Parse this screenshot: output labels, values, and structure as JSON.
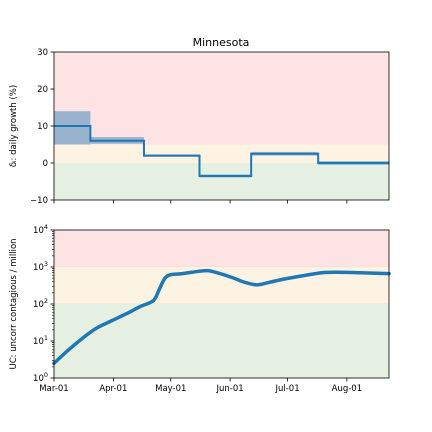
{
  "chart_data": [
    {
      "type": "step",
      "title": "Minnesota",
      "ylabel": "δᵢ: daily growth (%)",
      "ylim": [
        -10,
        30
      ],
      "xlim_days": [
        0,
        175
      ],
      "yticks": [
        -10,
        0,
        10,
        20,
        30
      ],
      "ytick_labels": [
        "−10",
        "0",
        "10",
        "20",
        "30"
      ],
      "bands": [
        {
          "name": "red-zone",
          "from": 5,
          "to": 30,
          "color": "#fde3e3"
        },
        {
          "name": "yellow-zone",
          "from": 0,
          "to": 5,
          "color": "#fdf3e3"
        },
        {
          "name": "green-zone",
          "from": -10,
          "to": 0,
          "color": "#e5f0e2"
        }
      ],
      "series": [
        {
          "name": "daily growth",
          "color": "#1f77b4",
          "segments": [
            {
              "start_day": 0,
              "end_day": 19,
              "value": 10,
              "ci_low": 5,
              "ci_high": 14
            },
            {
              "start_day": 19,
              "end_day": 47,
              "value": 6,
              "ci_low": 5.2,
              "ci_high": 7
            },
            {
              "start_day": 47,
              "end_day": 76,
              "value": 2,
              "ci_low": 1.7,
              "ci_high": 2.3
            },
            {
              "start_day": 76,
              "end_day": 103,
              "value": -3.5,
              "ci_low": -3.9,
              "ci_high": -3.1
            },
            {
              "start_day": 103,
              "end_day": 138,
              "value": 2.5,
              "ci_low": 2.0,
              "ci_high": 3.0
            },
            {
              "start_day": 138,
              "end_day": 175,
              "value": 0,
              "ci_low": -0.5,
              "ci_high": 0.5
            }
          ]
        }
      ]
    },
    {
      "type": "line",
      "ylabel": "UC: uncorr contagious / million",
      "yscale": "log",
      "ylim": [
        1,
        10000
      ],
      "xlim_days": [
        0,
        175
      ],
      "yticks": [
        1,
        10,
        100,
        1000,
        10000
      ],
      "ytick_base": [
        "10",
        "10",
        "10",
        "10",
        "10"
      ],
      "ytick_exp": [
        "0",
        "1",
        "2",
        "3",
        "4"
      ],
      "categories": [
        "Mar-01",
        "Apr-01",
        "May-01",
        "Jun-01",
        "Jul-01",
        "Aug-01"
      ],
      "category_days": [
        0,
        31,
        61,
        92,
        122,
        153
      ],
      "bands": [
        {
          "name": "red-zone",
          "from": 1000,
          "to": 10000,
          "color": "#fde3e3"
        },
        {
          "name": "yellow-zone",
          "from": 100,
          "to": 1000,
          "color": "#fdf3e3"
        },
        {
          "name": "green-zone",
          "from": 1,
          "to": 100,
          "color": "#e5f0e2"
        }
      ],
      "series": [
        {
          "name": "uncorrected contagious",
          "color": "#1f77b4",
          "x": [
            0,
            8,
            15,
            22,
            30,
            38,
            45,
            52,
            55,
            58,
            61,
            66,
            72,
            80,
            86,
            93,
            100,
            106,
            112,
            120,
            130,
            140,
            148,
            160,
            175
          ],
          "y": [
            2.5,
            6,
            12,
            22,
            35,
            55,
            85,
            125,
            250,
            500,
            620,
            650,
            720,
            800,
            680,
            520,
            380,
            330,
            380,
            470,
            580,
            700,
            720,
            700,
            660
          ]
        }
      ]
    }
  ]
}
